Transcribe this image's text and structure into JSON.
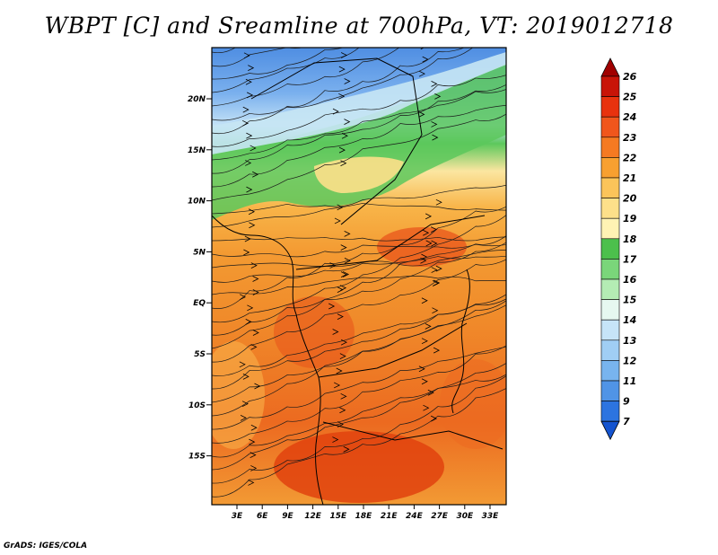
{
  "title": "WBPT [C] and Sreamline at 700hPa, VT: 2019012718",
  "credit": "GrADS: IGES/COLA",
  "map": {
    "lat_labels": [
      "20N",
      "15N",
      "10N",
      "5N",
      "EQ",
      "5S",
      "10S",
      "15S"
    ],
    "lon_labels": [
      "3E",
      "6E",
      "9E",
      "12E",
      "15E",
      "18E",
      "21E",
      "24E",
      "27E",
      "30E",
      "33E"
    ]
  },
  "colorbar": {
    "labels": [
      "26",
      "25",
      "24",
      "23",
      "22",
      "21",
      "20",
      "19",
      "18",
      "17",
      "16",
      "15",
      "14",
      "13",
      "12",
      "11",
      "9",
      "7"
    ],
    "colors": [
      "#a00000",
      "#c81408",
      "#e8320e",
      "#f0561c",
      "#f57a22",
      "#f8a030",
      "#fbc45a",
      "#fde08a",
      "#fff3b4",
      "#4cc04c",
      "#7ad67a",
      "#b4ecb4",
      "#e6f8f0",
      "#c6e4f8",
      "#a0cef4",
      "#78b4ee",
      "#5094e6",
      "#2c74e0",
      "#1454d0"
    ]
  }
}
